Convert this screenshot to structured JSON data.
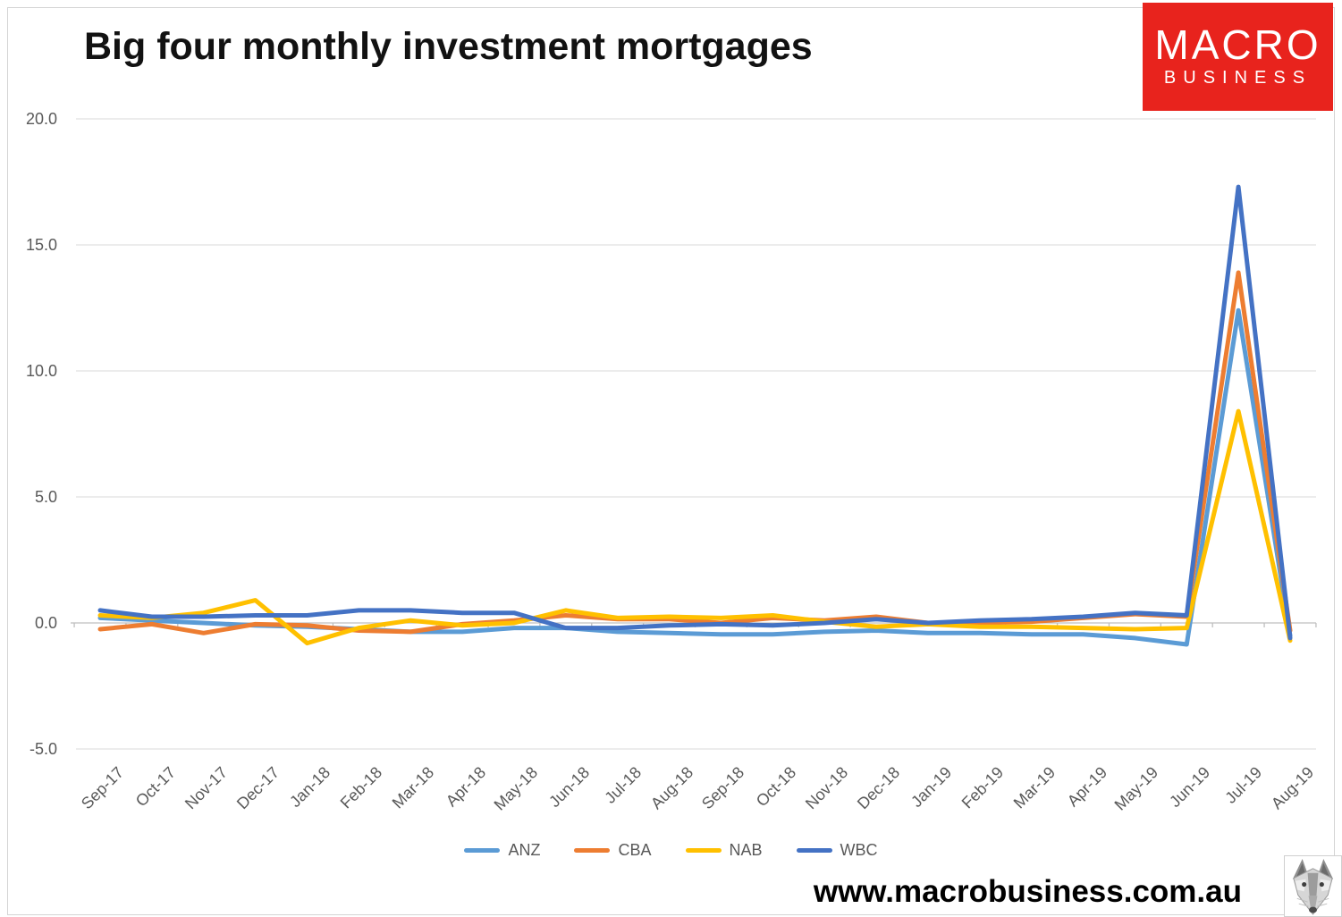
{
  "title": "Big four monthly investment mortgages",
  "logo": {
    "line1": "MACRO",
    "line2": "BUSINESS",
    "bg_color": "#e8231d",
    "text_color": "#ffffff"
  },
  "footer": {
    "url": "www.macrobusiness.com.au"
  },
  "colors": {
    "gridline": "#d9d9d9",
    "zero_axis": "#bfbfbf",
    "axis_text": "#595959",
    "title_text": "#121212"
  },
  "chart_data": {
    "type": "line",
    "title": "Big four monthly investment mortgages",
    "xlabel": "",
    "ylabel": "",
    "ylim": [
      -5.0,
      20.0
    ],
    "ytick_interval": 5.0,
    "ytick_values": [
      20.0,
      15.0,
      10.0,
      5.0,
      0.0,
      -5.0
    ],
    "ytick_labels": [
      "20.0",
      "15.0",
      "10.0",
      "5.0",
      "0.0",
      "-5.0"
    ],
    "grid": true,
    "legend_position": "bottom",
    "categories": [
      "Sep-17",
      "Oct-17",
      "Nov-17",
      "Dec-17",
      "Jan-18",
      "Feb-18",
      "Mar-18",
      "Apr-18",
      "May-18",
      "Jun-18",
      "Jul-18",
      "Aug-18",
      "Sep-18",
      "Oct-18",
      "Nov-18",
      "Dec-18",
      "Jan-19",
      "Feb-19",
      "Mar-19",
      "Apr-19",
      "May-19",
      "Jun-19",
      "Jul-19",
      "Aug-19"
    ],
    "series": [
      {
        "name": "ANZ",
        "color": "#5B9BD5",
        "values": [
          0.2,
          0.1,
          0.0,
          -0.1,
          -0.15,
          -0.25,
          -0.35,
          -0.35,
          -0.2,
          -0.2,
          -0.35,
          -0.4,
          -0.45,
          -0.45,
          -0.35,
          -0.3,
          -0.4,
          -0.4,
          -0.45,
          -0.45,
          -0.6,
          -0.85,
          12.4,
          -0.5
        ]
      },
      {
        "name": "CBA",
        "color": "#ED7D31",
        "values": [
          -0.25,
          -0.05,
          -0.4,
          -0.05,
          -0.1,
          -0.3,
          -0.35,
          -0.05,
          0.1,
          0.3,
          0.15,
          0.15,
          0.0,
          0.2,
          0.1,
          0.25,
          0.0,
          0.0,
          0.05,
          0.2,
          0.35,
          0.25,
          13.9,
          -0.3
        ]
      },
      {
        "name": "NAB",
        "color": "#FFC000",
        "values": [
          0.3,
          0.2,
          0.4,
          0.9,
          -0.8,
          -0.2,
          0.1,
          -0.1,
          0.0,
          0.5,
          0.2,
          0.25,
          0.2,
          0.3,
          0.05,
          -0.15,
          -0.05,
          -0.15,
          -0.15,
          -0.2,
          -0.25,
          -0.2,
          8.4,
          -0.7
        ]
      },
      {
        "name": "WBC",
        "color": "#4472C4",
        "values": [
          0.5,
          0.25,
          0.25,
          0.3,
          0.3,
          0.5,
          0.5,
          0.4,
          0.4,
          -0.2,
          -0.2,
          -0.1,
          -0.05,
          -0.1,
          0.0,
          0.15,
          0.0,
          0.1,
          0.15,
          0.25,
          0.4,
          0.3,
          17.3,
          -0.6
        ]
      }
    ]
  }
}
